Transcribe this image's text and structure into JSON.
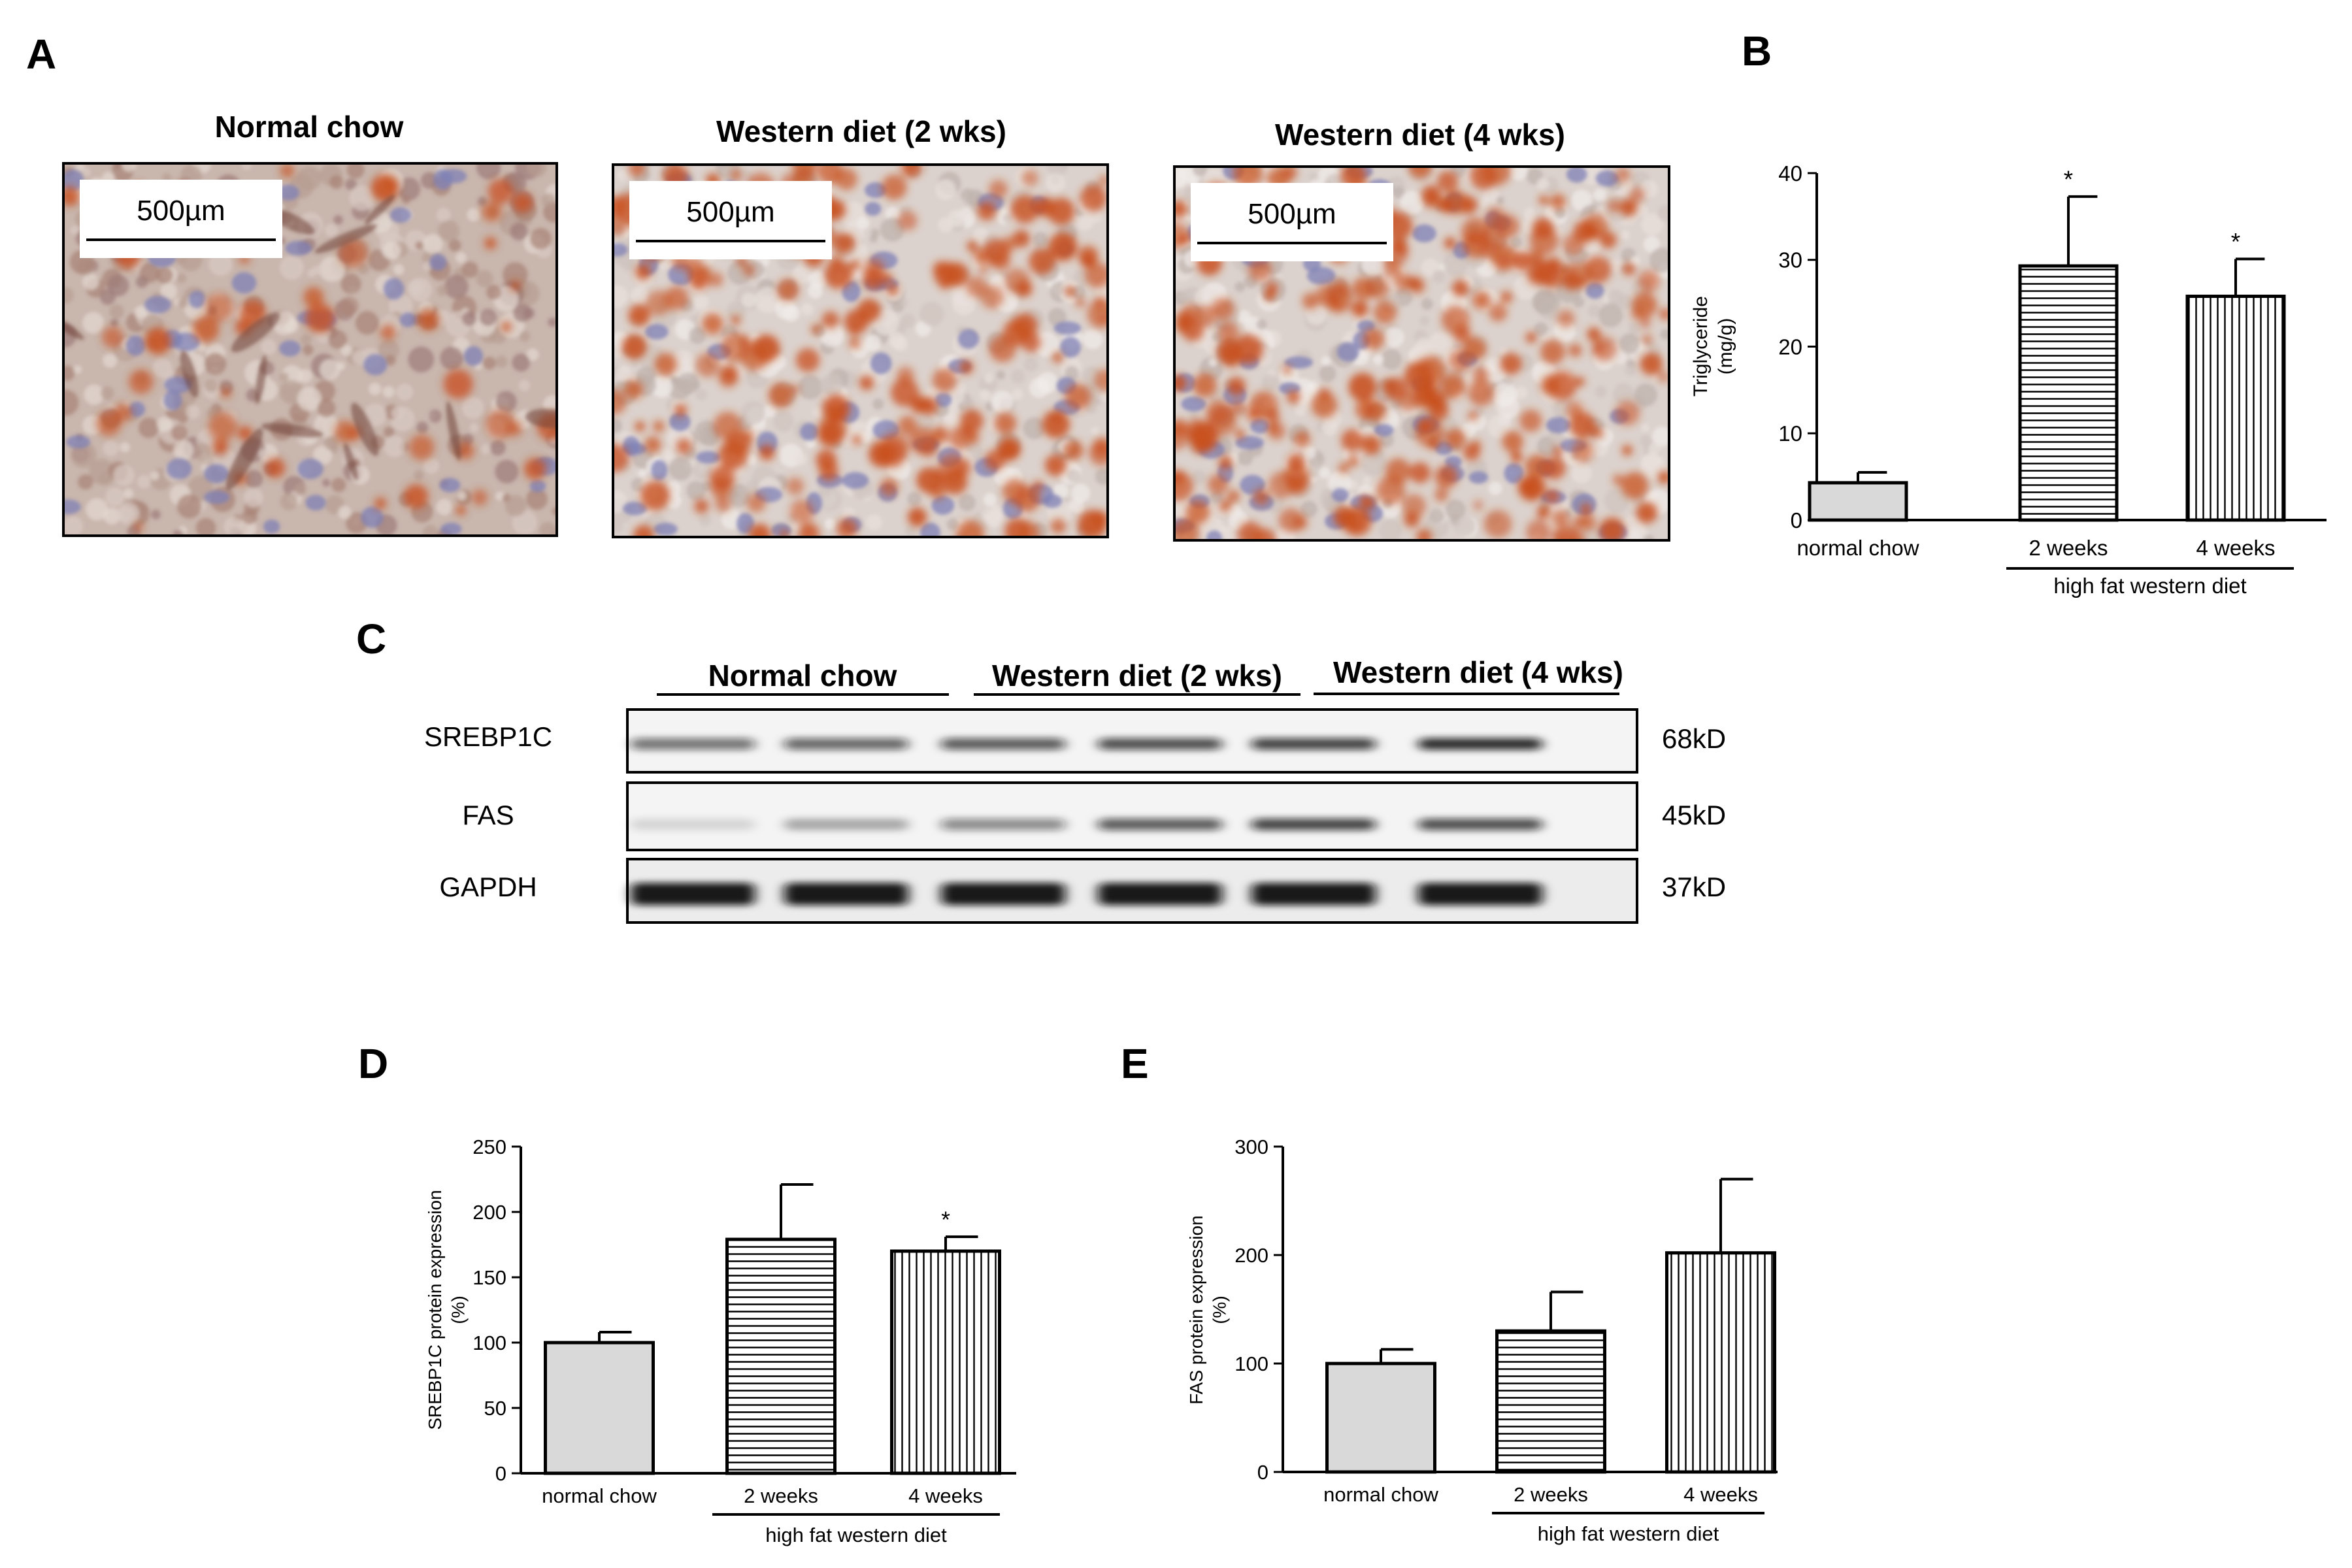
{
  "panels": {
    "a": "A",
    "b": "B",
    "c": "C",
    "d": "D",
    "e": "E"
  },
  "micrographs": [
    {
      "title": "Normal chow",
      "scale_label": "500µm",
      "stain_density": 0.15
    },
    {
      "title": "Western diet (2 wks)",
      "scale_label": "500µm",
      "stain_density": 0.55
    },
    {
      "title": "Western diet (4 wks)",
      "scale_label": "500µm",
      "stain_density": 0.7
    }
  ],
  "blot": {
    "groups": [
      "Normal chow",
      "Western diet (2 wks)",
      "Western diet (4 wks)"
    ],
    "rows": [
      {
        "protein": "SREBP1C",
        "size": "68kD",
        "intensity": [
          0.55,
          0.6,
          0.65,
          0.7,
          0.75,
          0.85
        ]
      },
      {
        "protein": "FAS",
        "size": "45kD",
        "intensity": [
          0.12,
          0.3,
          0.45,
          0.65,
          0.75,
          0.7
        ]
      },
      {
        "protein": "GAPDH",
        "size": "37kD",
        "intensity": [
          0.95,
          0.95,
          0.95,
          0.95,
          0.95,
          0.95
        ]
      }
    ]
  },
  "colors": {
    "bar_fill_control": "#d9d9d9",
    "bar_stroke": "#000000",
    "stain_red": "#c8501e",
    "stain_blue": "#7d80b6"
  },
  "chart_data": [
    {
      "type": "bar",
      "panel": "B",
      "categories": [
        "normal chow",
        "2 weeks",
        "4 weeks"
      ],
      "values": [
        4.3,
        29.3,
        25.8
      ],
      "errors": [
        1.2,
        8.0,
        4.3
      ],
      "significance": [
        "",
        "*",
        "*"
      ],
      "patterns": [
        "solid",
        "horizontal",
        "vertical"
      ],
      "ylabel": "Triglyceride\n(mg/g)",
      "group_label": "high fat western diet",
      "ylim": [
        0,
        40
      ],
      "yticks": [
        0,
        10,
        20,
        30,
        40
      ]
    },
    {
      "type": "bar",
      "panel": "D",
      "categories": [
        "normal chow",
        "2 weeks",
        "4 weeks"
      ],
      "values": [
        100,
        179,
        170
      ],
      "errors": [
        8,
        42,
        11
      ],
      "significance": [
        "",
        "",
        "*"
      ],
      "patterns": [
        "solid",
        "horizontal",
        "vertical"
      ],
      "ylabel": "SREBP1C protein expression\n(%)",
      "group_label": "high fat western diet",
      "ylim": [
        0,
        250
      ],
      "yticks": [
        0,
        50,
        100,
        150,
        200,
        250
      ]
    },
    {
      "type": "bar",
      "panel": "E",
      "categories": [
        "normal chow",
        "2 weeks",
        "4 weeks"
      ],
      "values": [
        100,
        130,
        202
      ],
      "errors": [
        13,
        36,
        68
      ],
      "significance": [
        "",
        "",
        ""
      ],
      "patterns": [
        "solid",
        "horizontal",
        "vertical"
      ],
      "ylabel": "FAS protein expression\n(%)",
      "group_label": "high fat western diet",
      "ylim": [
        0,
        300
      ],
      "yticks": [
        0,
        100,
        200,
        300
      ]
    }
  ]
}
